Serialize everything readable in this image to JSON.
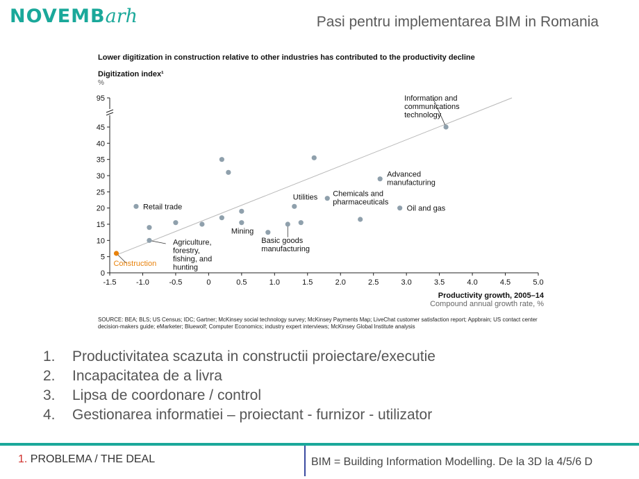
{
  "header": {
    "logo_main": "NOVEMB",
    "logo_tail": "arh",
    "slide_title": "Pasi pentru implementarea BIM in Romania"
  },
  "chart_data": {
    "type": "scatter",
    "title": "Lower digitization in construction relative to other industries has contributed to the productivity decline",
    "ylabel": "Digitization index¹",
    "yunit": "%",
    "xlabel": "Productivity growth, 2005–14",
    "xunit": "Compound annual growth rate, %",
    "xlim": [
      -1.5,
      5.0
    ],
    "ylim": [
      0,
      95
    ],
    "y_axis_break": [
      45,
      95
    ],
    "x_ticks": [
      "-1.5",
      "-1.0",
      "-0.5",
      "0",
      "0.5",
      "1.0",
      "1.5",
      "2.0",
      "2.5",
      "3.0",
      "3.5",
      "4.0",
      "4.5",
      "5.0"
    ],
    "y_ticks": [
      "0",
      "5",
      "10",
      "15",
      "20",
      "25",
      "30",
      "35",
      "40",
      "45",
      "95"
    ],
    "grid": false,
    "point_color": "#8fa0ac",
    "highlight_color": "#e8820c",
    "trendline": {
      "x": [
        -1.4,
        4.6
      ],
      "y": [
        5.5,
        49
      ]
    },
    "points": [
      {
        "x": -1.4,
        "y": 6,
        "label": "Construction",
        "highlight": true
      },
      {
        "x": -1.1,
        "y": 20.5,
        "label": "Retail trade"
      },
      {
        "x": -0.9,
        "y": 14,
        "label": ""
      },
      {
        "x": -0.9,
        "y": 10,
        "label": "Agriculture, forestry, fishing, and hunting"
      },
      {
        "x": -0.5,
        "y": 15.5,
        "label": ""
      },
      {
        "x": -0.1,
        "y": 15,
        "label": ""
      },
      {
        "x": 0.2,
        "y": 17,
        "label": ""
      },
      {
        "x": 0.2,
        "y": 35,
        "label": ""
      },
      {
        "x": 0.3,
        "y": 31,
        "label": ""
      },
      {
        "x": 0.5,
        "y": 19,
        "label": ""
      },
      {
        "x": 0.5,
        "y": 15.5,
        "label": "Mining"
      },
      {
        "x": 0.9,
        "y": 12.5,
        "label": ""
      },
      {
        "x": 1.2,
        "y": 15,
        "label": "Basic goods manufacturing"
      },
      {
        "x": 1.3,
        "y": 20.5,
        "label": "Utilities"
      },
      {
        "x": 1.4,
        "y": 15.5,
        "label": ""
      },
      {
        "x": 1.6,
        "y": 35.5,
        "label": ""
      },
      {
        "x": 1.8,
        "y": 23,
        "label": "Chemicals and pharmaceuticals"
      },
      {
        "x": 2.3,
        "y": 16.5,
        "label": ""
      },
      {
        "x": 2.6,
        "y": 29,
        "label": "Advanced manufacturing"
      },
      {
        "x": 2.9,
        "y": 20,
        "label": "Oil and gas"
      },
      {
        "x": 3.6,
        "y": 45,
        "label": "Information and communications technology"
      }
    ]
  },
  "source": "SOURCE: BEA; BLS; US Census; IDC; Gartner; McKinsey social technology survey; McKinsey Payments Map; LiveChat customer satisfaction report; Appbrain; US contact center decision-makers guide; eMarketer; Bluewolf; Computer Economics; industry expert interviews; McKinsey Global Institute analysis",
  "list": [
    {
      "num": "1.",
      "text": "Productivitatea scazuta in constructii proiectare/executie"
    },
    {
      "num": "2.",
      "text": "Incapacitatea de a livra"
    },
    {
      "num": "3.",
      "text": "Lipsa de coordonare / control"
    },
    {
      "num": "4.",
      "text": "Gestionarea informatiei – proiectant - furnizor - utilizator"
    }
  ],
  "footer": {
    "section_number": "1.",
    "section_label": "PROBLEMA / THE DEAL",
    "right_text": "BIM = Building Information Modelling. De la 3D la 4/5/6 D"
  }
}
